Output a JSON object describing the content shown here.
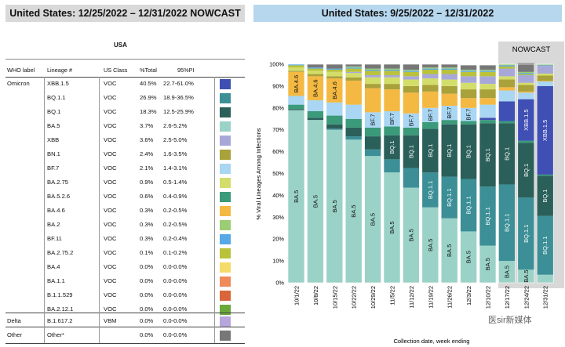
{
  "left_title": "United States: 12/25/2022 – 12/31/2022 NOWCAST",
  "right_title": "United States: 9/25/2022 – 12/31/2022",
  "table": {
    "region": "USA",
    "headers": [
      "WHO label",
      "Lineage #",
      "US Class",
      "%Total",
      "95%PI"
    ],
    "rows": [
      {
        "who": "Omicron",
        "lineage": "XBB.1.5",
        "class": "VOC",
        "pct": "40.5%",
        "pi": "22.7-61.0%",
        "color": "#3f4fb4"
      },
      {
        "who": "",
        "lineage": "BQ.1.1",
        "class": "VOC",
        "pct": "26.9%",
        "pi": "18.9-36.5%",
        "color": "#3c8f96"
      },
      {
        "who": "",
        "lineage": "BQ.1",
        "class": "VOC",
        "pct": "18.3%",
        "pi": "12.5-25.9%",
        "color": "#2b5f5a"
      },
      {
        "who": "",
        "lineage": "BA.5",
        "class": "VOC",
        "pct": "3.7%",
        "pi": "2.6-5.2%",
        "color": "#9bd2c8"
      },
      {
        "who": "",
        "lineage": "XBB",
        "class": "VOC",
        "pct": "3.6%",
        "pi": "2.5-5.0%",
        "color": "#a8a8d8"
      },
      {
        "who": "",
        "lineage": "BN.1",
        "class": "VOC",
        "pct": "2.4%",
        "pi": "1.6-3.5%",
        "color": "#a9a13a"
      },
      {
        "who": "",
        "lineage": "BF.7",
        "class": "VOC",
        "pct": "2.1%",
        "pi": "1.4-3.1%",
        "color": "#a9d6f3"
      },
      {
        "who": "",
        "lineage": "BA.2.75",
        "class": "VOC",
        "pct": "0.9%",
        "pi": "0.5-1.4%",
        "color": "#d3de6a"
      },
      {
        "who": "",
        "lineage": "BA.5.2.6",
        "class": "VOC",
        "pct": "0.6%",
        "pi": "0.4-0.9%",
        "color": "#3a9a7a"
      },
      {
        "who": "",
        "lineage": "BA.4.6",
        "class": "VOC",
        "pct": "0.3%",
        "pi": "0.2-0.5%",
        "color": "#f4b942"
      },
      {
        "who": "",
        "lineage": "BA.2",
        "class": "VOC",
        "pct": "0.3%",
        "pi": "0.2-0.5%",
        "color": "#9ccc74"
      },
      {
        "who": "",
        "lineage": "BF.11",
        "class": "VOC",
        "pct": "0.3%",
        "pi": "0.2-0.4%",
        "color": "#56a8e6"
      },
      {
        "who": "",
        "lineage": "BA.2.75.2",
        "class": "VOC",
        "pct": "0.1%",
        "pi": "0.1-0.2%",
        "color": "#b9c23a"
      },
      {
        "who": "",
        "lineage": "BA.4",
        "class": "VOC",
        "pct": "0.0%",
        "pi": "0.0-0.0%",
        "color": "#f5db6a"
      },
      {
        "who": "",
        "lineage": "BA.1.1",
        "class": "VOC",
        "pct": "0.0%",
        "pi": "0.0-0.0%",
        "color": "#ef8a5a"
      },
      {
        "who": "",
        "lineage": "B.1.1.529",
        "class": "VOC",
        "pct": "0.0%",
        "pi": "0.0-0.0%",
        "color": "#d9663a"
      },
      {
        "who": "",
        "lineage": "BA.2.12.1",
        "class": "VOC",
        "pct": "0.0%",
        "pi": "0.0-0.0%",
        "color": "#6aa83a"
      },
      {
        "who": "Delta",
        "lineage": "B.1.617.2",
        "class": "VBM",
        "pct": "0.0%",
        "pi": "0.0-0.0%",
        "color": "#b6a6dc"
      },
      {
        "who": "Other",
        "lineage": "Other*",
        "class": "",
        "pct": "0.0%",
        "pi": "0.0-0.0%",
        "color": "#777777"
      }
    ]
  },
  "nowcast_label": "NOWCAST",
  "watermark": "医sir新媒体",
  "chart_data": {
    "type": "bar",
    "stacked": true,
    "percent": true,
    "ylabel": "% Viral Lineages Among Infections",
    "xlabel": "Collection date, week ending",
    "ylim": [
      0,
      100
    ],
    "yticks": [
      "0%",
      "10%",
      "20%",
      "30%",
      "40%",
      "50%",
      "60%",
      "70%",
      "80%",
      "90%",
      "100%"
    ],
    "categories": [
      "10/1/22",
      "10/8/22",
      "10/15/22",
      "10/22/22",
      "10/29/22",
      "11/5/22",
      "11/12/22",
      "11/19/22",
      "11/26/22",
      "12/3/22",
      "12/10/22",
      "12/17/22",
      "12/24/22",
      "12/31/22"
    ],
    "nowcast_categories": [
      "12/17/22",
      "12/24/22",
      "12/31/22"
    ],
    "series": [
      {
        "name": "BA.5",
        "color": "#9bd2c8",
        "values": [
          79,
          74.5,
          70,
          65.5,
          58,
          50.5,
          43.5,
          34.5,
          29.5,
          23.5,
          17,
          10,
          6,
          3.7
        ]
      },
      {
        "name": "BQ.1.1",
        "color": "#3c8f96",
        "values": [
          0,
          0,
          0.5,
          1.5,
          3,
          6,
          9,
          16,
          19,
          24,
          27,
          35,
          33,
          26.9
        ]
      },
      {
        "name": "BQ.1",
        "color": "#2b5f5a",
        "values": [
          0.5,
          1,
          2,
          4,
          6,
          11,
          15,
          20,
          24,
          25,
          29,
          28,
          25,
          18.3
        ]
      },
      {
        "name": "BA.5.2.6",
        "color": "#3a9a7a",
        "values": [
          2,
          3,
          4,
          4,
          4,
          4,
          3.5,
          3,
          2,
          1.5,
          1.5,
          1,
          1,
          0.6
        ]
      },
      {
        "name": "XBB.1.5",
        "color": "#3f4fb4",
        "values": [
          0,
          0,
          0,
          0,
          0,
          0,
          0,
          0,
          0,
          0,
          1,
          9,
          19,
          40.5
        ]
      },
      {
        "name": "BF.7",
        "color": "#a9d6f3",
        "values": [
          4,
          5,
          6,
          6.5,
          7,
          7,
          6.5,
          6.5,
          6.5,
          6,
          6,
          5,
          3,
          2.1
        ]
      },
      {
        "name": "BA.4.6",
        "color": "#f4b942",
        "values": [
          11,
          11,
          11,
          11,
          11,
          10,
          9.5,
          7.5,
          5.5,
          4.5,
          3,
          1.5,
          0.5,
          0.3
        ]
      },
      {
        "name": "BN.1",
        "color": "#a9a13a",
        "values": [
          0.5,
          1,
          1,
          1.5,
          2,
          2.5,
          3,
          3,
          3.5,
          4,
          4,
          3.5,
          3,
          2.4
        ]
      },
      {
        "name": "BA.2.75",
        "color": "#d3de6a",
        "values": [
          1.5,
          1.5,
          2,
          2,
          3,
          3,
          3,
          3,
          3,
          3,
          2.5,
          1.5,
          1,
          0.9
        ]
      },
      {
        "name": "XBB",
        "color": "#a8a8d8",
        "values": [
          0,
          0,
          0,
          0.5,
          1,
          1,
          1.5,
          2,
          2.5,
          3,
          3.5,
          3.5,
          3.5,
          3.6
        ]
      },
      {
        "name": "BA.2.75.2",
        "color": "#b9c23a",
        "values": [
          1,
          1,
          1,
          1.5,
          2,
          2,
          2,
          2,
          2,
          2,
          2,
          1,
          0.5,
          0.1
        ]
      },
      {
        "name": "BF.11",
        "color": "#56a8e6",
        "values": [
          0.5,
          0.5,
          0.5,
          0.5,
          0.5,
          0.5,
          0.5,
          0.5,
          0.5,
          0.5,
          0.5,
          0.5,
          0.5,
          0.3
        ]
      },
      {
        "name": "BA.2",
        "color": "#9ccc74",
        "values": [
          0,
          0,
          0,
          0.5,
          0.5,
          0.5,
          0.5,
          0.5,
          0.5,
          0.5,
          0.5,
          0.5,
          0.5,
          0.3
        ]
      },
      {
        "name": "Other*",
        "color": "#777777",
        "values": [
          0,
          1.5,
          2,
          1,
          2,
          2,
          2.5,
          1.5,
          1.5,
          2,
          2,
          0,
          4,
          0
        ]
      }
    ],
    "bar_labels": [
      {
        "bar": "10/1/22",
        "series": "BA.5",
        "text": "BA.5"
      },
      {
        "bar": "10/1/22",
        "series": "BA.4.6",
        "text": "BA.4.6"
      },
      {
        "bar": "10/8/22",
        "series": "BA.5",
        "text": "BA.5"
      },
      {
        "bar": "10/8/22",
        "series": "BA.4.6",
        "text": "BA.4.6"
      },
      {
        "bar": "10/15/22",
        "series": "BA.5",
        "text": "BA.5"
      },
      {
        "bar": "10/15/22",
        "series": "BA.4.6",
        "text": "BA.4.6"
      },
      {
        "bar": "10/22/22",
        "series": "BA.5",
        "text": "BA.5"
      },
      {
        "bar": "10/29/22",
        "series": "BA.5",
        "text": "BA.5"
      },
      {
        "bar": "10/29/22",
        "series": "BF.7",
        "text": "BF.7"
      },
      {
        "bar": "11/5/22",
        "series": "BA.5",
        "text": "BA.5"
      },
      {
        "bar": "11/5/22",
        "series": "BQ.1",
        "text": "BQ.1"
      },
      {
        "bar": "11/5/22",
        "series": "BF.7",
        "text": "BF.7"
      },
      {
        "bar": "11/12/22",
        "series": "BA.5",
        "text": "BA.5"
      },
      {
        "bar": "11/12/22",
        "series": "BQ.1",
        "text": "BQ.1"
      },
      {
        "bar": "11/12/22",
        "series": "BF.7",
        "text": "BF.7"
      },
      {
        "bar": "11/19/22",
        "series": "BA.5",
        "text": "BA.5"
      },
      {
        "bar": "11/19/22",
        "series": "BQ.1.1",
        "text": "BQ.1.1"
      },
      {
        "bar": "11/19/22",
        "series": "BQ.1",
        "text": "BQ.1"
      },
      {
        "bar": "11/19/22",
        "series": "BF.7",
        "text": "BF.7"
      },
      {
        "bar": "11/26/22",
        "series": "BA.5",
        "text": "BA.5"
      },
      {
        "bar": "11/26/22",
        "series": "BQ.1.1",
        "text": "BQ.1.1"
      },
      {
        "bar": "11/26/22",
        "series": "BQ.1",
        "text": "BQ.1"
      },
      {
        "bar": "11/26/22",
        "series": "BF.7",
        "text": "BF.7"
      },
      {
        "bar": "12/3/22",
        "series": "BA.5",
        "text": "BA.5"
      },
      {
        "bar": "12/3/22",
        "series": "BQ.1.1",
        "text": "BQ.1.1"
      },
      {
        "bar": "12/3/22",
        "series": "BQ.1",
        "text": "BQ.1"
      },
      {
        "bar": "12/3/22",
        "series": "BF.7",
        "text": "BF.7"
      },
      {
        "bar": "12/10/22",
        "series": "BA.5",
        "text": "BA.5"
      },
      {
        "bar": "12/10/22",
        "series": "BQ.1.1",
        "text": "BQ.1.1"
      },
      {
        "bar": "12/10/22",
        "series": "BQ.1",
        "text": "BQ.1"
      },
      {
        "bar": "12/17/22",
        "series": "BA.5",
        "text": "BA.5"
      },
      {
        "bar": "12/17/22",
        "series": "BQ.1.1",
        "text": "BQ.1.1"
      },
      {
        "bar": "12/17/22",
        "series": "BQ.1",
        "text": "BQ.1"
      },
      {
        "bar": "12/24/22",
        "series": "BA.5",
        "text": "BA.5"
      },
      {
        "bar": "12/24/22",
        "series": "BQ.1.1",
        "text": "BQ.1.1"
      },
      {
        "bar": "12/24/22",
        "series": "BQ.1",
        "text": "BQ.1"
      },
      {
        "bar": "12/24/22",
        "series": "XBB.1.5",
        "text": "XBB.1.5"
      },
      {
        "bar": "12/31/22",
        "series": "BQ.1.1",
        "text": "BQ.1.1"
      },
      {
        "bar": "12/31/22",
        "series": "BQ.1",
        "text": "BQ.1"
      },
      {
        "bar": "12/31/22",
        "series": "XBB.1.5",
        "text": "XBB.1.5"
      }
    ]
  }
}
